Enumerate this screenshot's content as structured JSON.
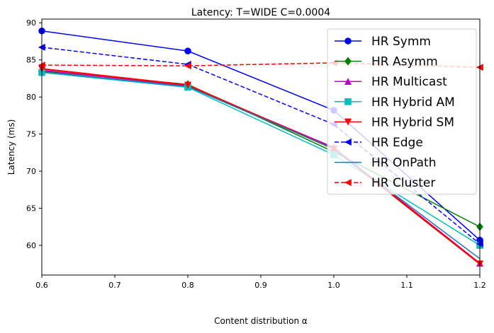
{
  "chart_data": {
    "type": "line",
    "title": "Latency: T=WIDE C=0.0004",
    "xlabel": "Content distribution α",
    "ylabel": "Latency (ms)",
    "xlim": [
      0.6,
      1.2
    ],
    "ylim": [
      56,
      90.5
    ],
    "xticks": [
      0.6,
      0.7,
      0.8,
      0.9,
      1.0,
      1.1,
      1.2
    ],
    "xtick_labels": [
      "0.6",
      "0.7",
      "0.8",
      "0.9",
      "1.0",
      "1.1",
      "1.2"
    ],
    "yticks": [
      60,
      65,
      70,
      75,
      80,
      85,
      90
    ],
    "ytick_labels": [
      "60",
      "65",
      "70",
      "75",
      "80",
      "85",
      "90"
    ],
    "grid": false,
    "legend_position": "top-right",
    "x": [
      0.6,
      0.8,
      1.0,
      1.2
    ],
    "series": [
      {
        "name": "HR Symm",
        "color": "#0000ff",
        "dash": "solid",
        "marker": "circle",
        "values": [
          88.9,
          86.2,
          78.2,
          60.7
        ]
      },
      {
        "name": "HR Asymm",
        "color": "#008000",
        "dash": "solid",
        "marker": "diamond",
        "values": [
          83.5,
          81.7,
          72.6,
          62.5
        ]
      },
      {
        "name": "HR Multicast",
        "color": "#bf00bf",
        "dash": "solid",
        "marker": "triangle-up",
        "values": [
          83.6,
          81.5,
          73.2,
          57.6
        ]
      },
      {
        "name": "HR Hybrid AM",
        "color": "#00bfbf",
        "dash": "solid",
        "marker": "square",
        "values": [
          83.3,
          81.3,
          72.2,
          60.0
        ]
      },
      {
        "name": "HR Hybrid SM",
        "color": "#ff0000",
        "dash": "solid",
        "marker": "triangle-down",
        "values": [
          83.8,
          81.6,
          73.0,
          57.5
        ]
      },
      {
        "name": "HR Edge",
        "color": "#0000ff",
        "dash": "dashed",
        "marker": "triangle-left",
        "values": [
          86.7,
          84.4,
          76.3,
          60.2
        ]
      },
      {
        "name": "HR OnPath",
        "color": "#1f77b4",
        "dash": "solid",
        "marker": "none",
        "values": [
          83.4,
          81.4,
          73.0,
          58.2
        ]
      },
      {
        "name": "HR Cluster",
        "color": "#ff0000",
        "dash": "dashed",
        "marker": "triangle-left",
        "values": [
          84.3,
          84.2,
          84.6,
          84.0
        ]
      }
    ]
  }
}
